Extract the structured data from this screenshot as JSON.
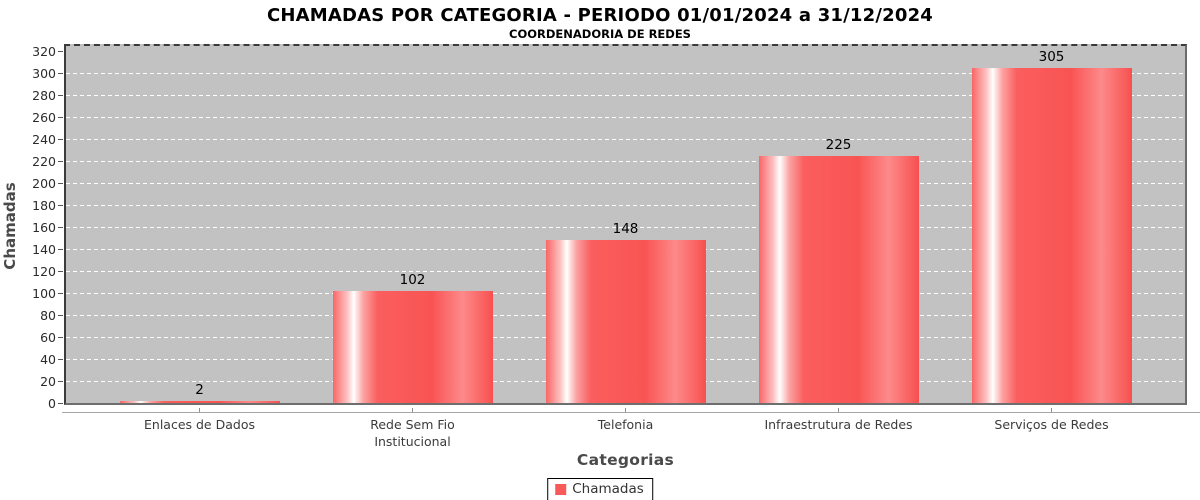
{
  "header": {
    "title": "CHAMADAS POR CATEGORIA - PERIODO 01/01/2024 a 31/12/2024",
    "subtitle": "COORDENADORIA DE REDES"
  },
  "chart_data": {
    "type": "bar",
    "title": "CHAMADAS POR CATEGORIA - PERIODO 01/01/2024 a 31/12/2024",
    "subtitle": "COORDENADORIA DE REDES",
    "xlabel": "Categorias",
    "ylabel": "Chamadas",
    "categories": [
      "Enlaces de Dados",
      "Rede Sem Fio Institucional",
      "Telefonia",
      "Infraestrutura de Redes",
      "Serviços de Redes"
    ],
    "category_label_lines": [
      [
        "Enlaces de Dados"
      ],
      [
        "Rede Sem Fio",
        "Institucional"
      ],
      [
        "Telefonia"
      ],
      [
        "Infraestrutura de Redes"
      ],
      [
        "Serviços de Redes"
      ]
    ],
    "series": [
      {
        "name": "Chamadas",
        "values": [
          2,
          102,
          148,
          225,
          305
        ]
      }
    ],
    "value_labels": [
      "2",
      "102",
      "148",
      "225",
      "305"
    ],
    "ylim": [
      0,
      325
    ],
    "ytick_step": 20,
    "ytick_max": 320,
    "grid": "horizontal-dashed",
    "legend_position": "bottom-center",
    "colors": {
      "bar": "#fa5a5a",
      "bar_highlight": "#ffffff",
      "plot_background": "#c2c2c2",
      "gridline": "#ffffff",
      "value_label": "#000000"
    }
  },
  "legend": {
    "items": [
      {
        "label": "Chamadas",
        "color": "#f85a5a"
      }
    ]
  }
}
